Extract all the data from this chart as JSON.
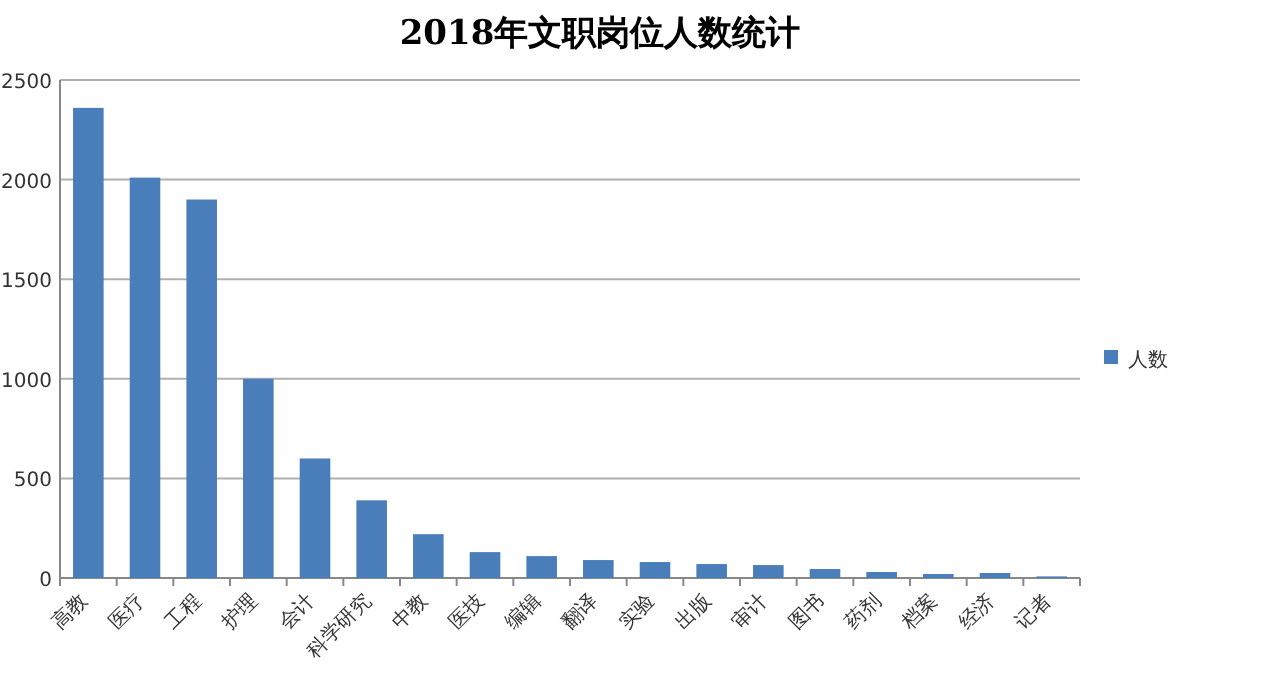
{
  "chart_data": {
    "type": "bar",
    "title": "2018年文职岗位人数统计",
    "categories": [
      "高教",
      "医疗",
      "工程",
      "护理",
      "会计",
      "科学研究",
      "中教",
      "医技",
      "编辑",
      "翻译",
      "实验",
      "出版",
      "审计",
      "图书",
      "药剂",
      "档案",
      "经济",
      "记者"
    ],
    "series": [
      {
        "name": "人数",
        "color": "#4a7ebb",
        "values": [
          2360,
          2010,
          1900,
          1000,
          600,
          390,
          220,
          130,
          110,
          90,
          80,
          70,
          65,
          45,
          30,
          20,
          25,
          8
        ]
      }
    ],
    "ylim": [
      0,
      2500
    ],
    "yticks": [
      0,
      500,
      1000,
      1500,
      2000,
      2500
    ],
    "grid": "y",
    "legend": "right"
  }
}
